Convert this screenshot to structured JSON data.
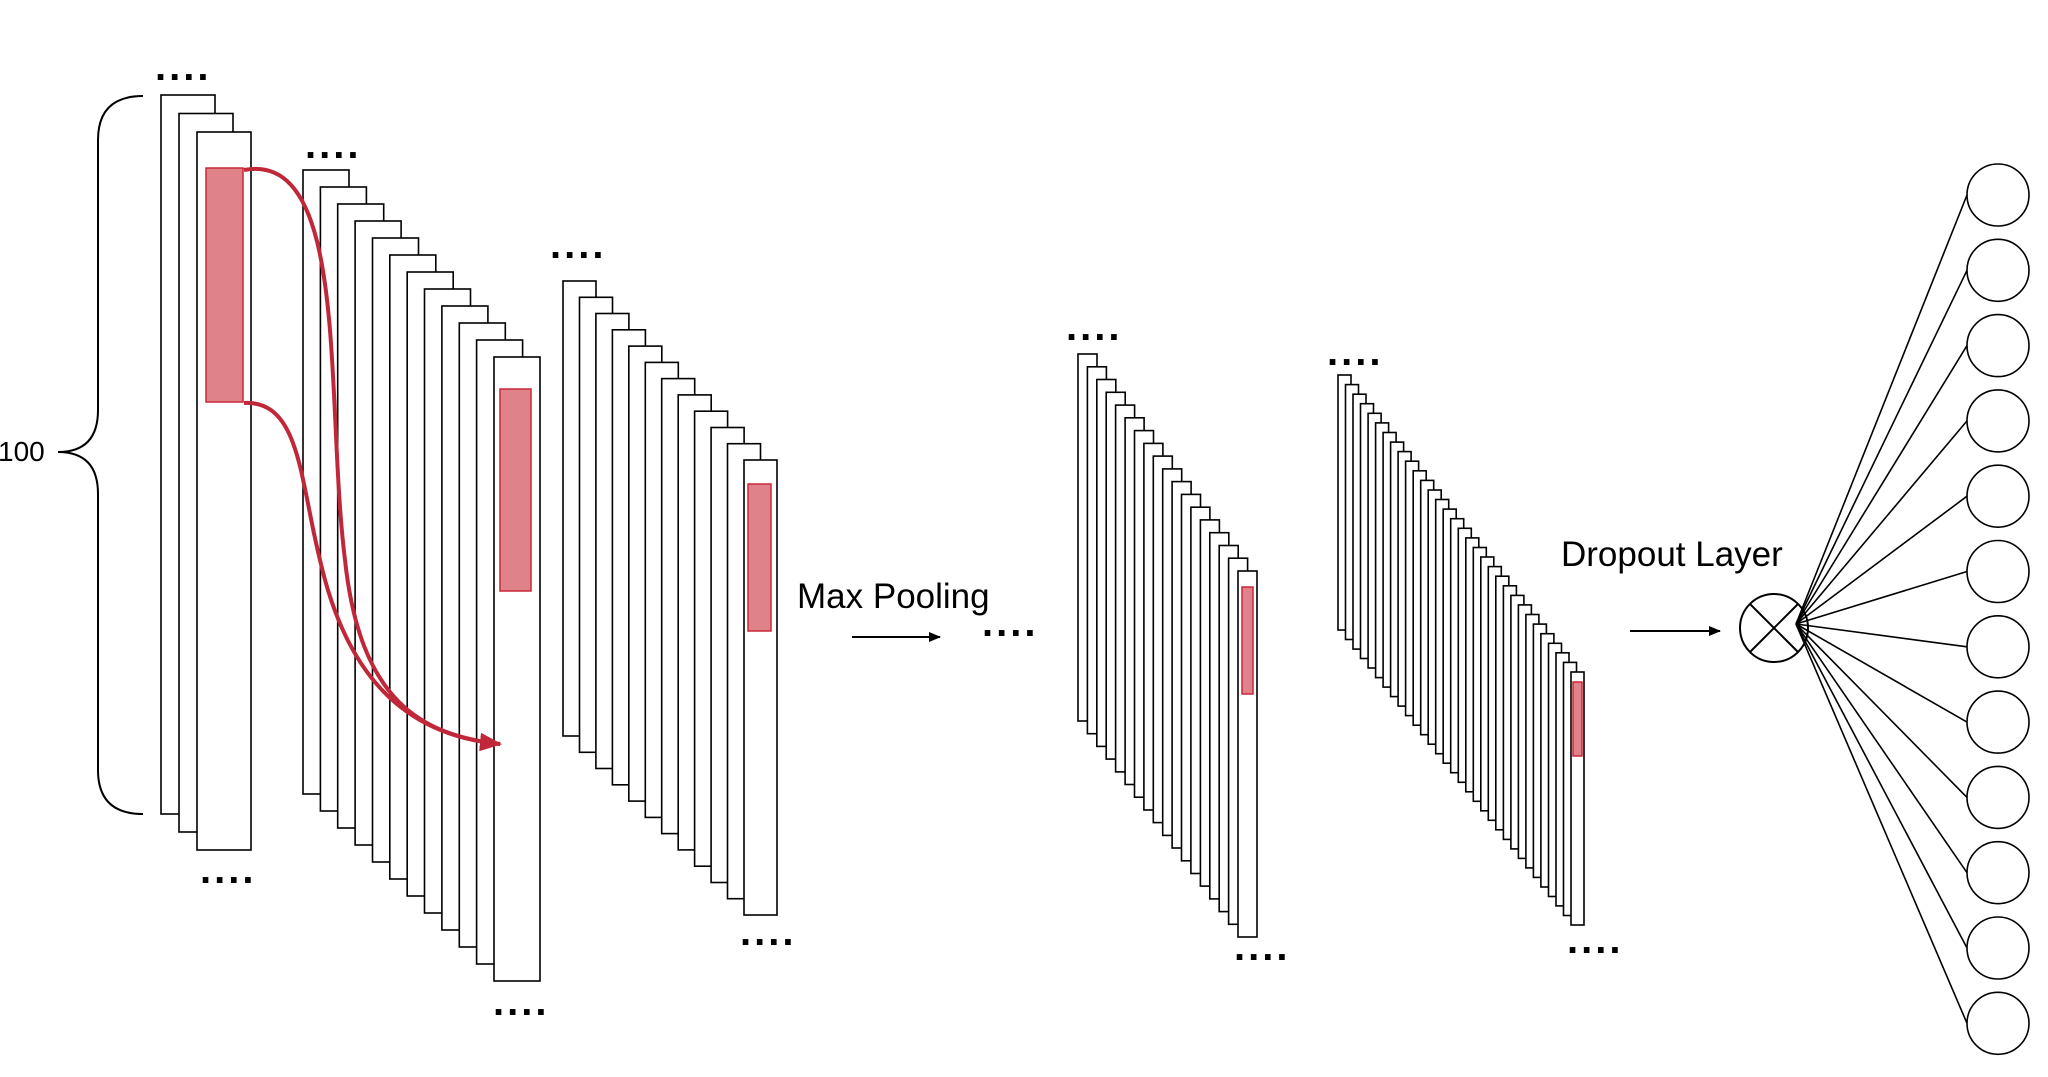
{
  "labels": {
    "brace_value": "100",
    "max_pooling": "Max Pooling",
    "dropout_layer": "Dropout Layer",
    "ellipsis": "...."
  },
  "colors": {
    "highlight_fill": "#e0828a",
    "highlight_stroke": "#c8283a",
    "arrow": "#c0283a",
    "stroke": "#000000"
  },
  "icons": {
    "dropout_node": "circle-x-icon"
  },
  "output_nodes": 12
}
